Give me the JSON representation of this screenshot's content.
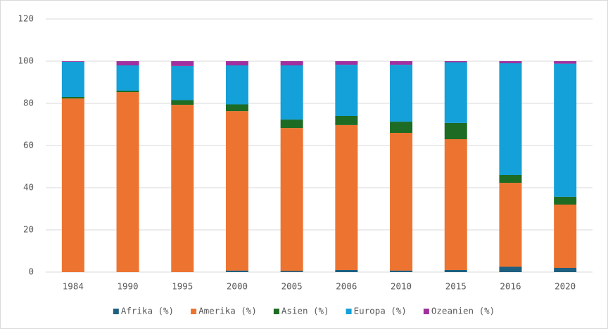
{
  "chart_data": {
    "type": "stacked_bar",
    "categories": [
      "1984",
      "1990",
      "1995",
      "2000",
      "2005",
      "2006",
      "2010",
      "2015",
      "2016",
      "2020"
    ],
    "series": [
      {
        "name": "Afrika (%)",
        "color": "#1f5f7f",
        "values": [
          0,
          0,
          0,
          0.7,
          0.5,
          1,
          0.7,
          1,
          2.5,
          2
        ]
      },
      {
        "name": "Amerika (%)",
        "color": "#ed7430",
        "values": [
          82.3,
          85.3,
          79.3,
          75.6,
          67.8,
          68.7,
          65.3,
          62,
          39.8,
          30
        ]
      },
      {
        "name": "Asien (%)",
        "color": "#1e6b23",
        "values": [
          0.7,
          0.7,
          2.2,
          3.2,
          4,
          4.3,
          5.3,
          7.7,
          3.7,
          3.7
        ]
      },
      {
        "name": "Europa (%)",
        "color": "#14a0d8",
        "values": [
          16.7,
          12,
          16.2,
          18.5,
          25.7,
          24.3,
          27,
          28.8,
          53,
          63.1
        ]
      },
      {
        "name": "Ozeanien (%)",
        "color": "#a0309e",
        "values": [
          0.3,
          2,
          2.3,
          2,
          2,
          1.7,
          1.7,
          0.5,
          1,
          1.2
        ]
      }
    ],
    "ylim": [
      0,
      120
    ],
    "yticks": [
      0,
      20,
      40,
      60,
      80,
      100,
      120
    ],
    "grid": true,
    "legend": "bottom"
  }
}
